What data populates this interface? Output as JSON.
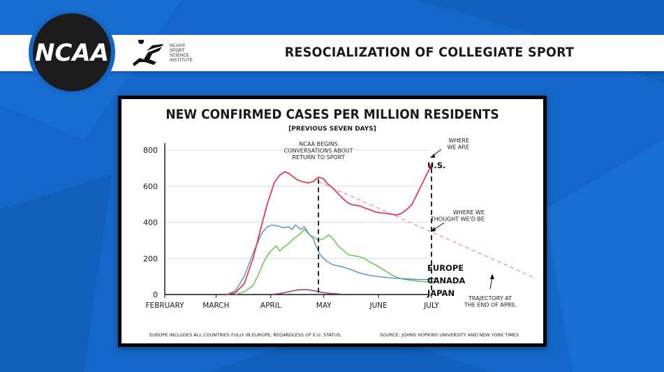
{
  "slide": {
    "title": "RESOCIALIZATION OF COLLEGIATE SPORT",
    "logo_text": "NCAA",
    "institute_lines": [
      "NCAA®",
      "SPORT",
      "SCIENCE",
      "INSTITUTE"
    ]
  },
  "colors": {
    "background": "#1467c8",
    "us": "#e23b4e",
    "europe": "#4d8fd6",
    "canada": "#5cc245",
    "japan": "#8b2a6e",
    "trajectory": "#f2a0ac"
  },
  "chart_data": {
    "type": "line",
    "title": "NEW CONFIRMED CASES PER MILLION RESIDENTS",
    "subtitle": "[PREVIOUS SEVEN DAYS]",
    "x_ticks": [
      "FEBRUARY",
      "MARCH",
      "APRIL",
      "MAY",
      "JUNE",
      "JULY"
    ],
    "y_ticks": [
      0,
      200,
      400,
      600,
      800
    ],
    "ylim": [
      0,
      800
    ],
    "x_unit": "days since Feb 1",
    "grid": true,
    "series": [
      {
        "name": "U.S.",
        "color": "#e23b4e",
        "x": [
          35,
          40,
          45,
          50,
          55,
          58,
          62,
          65,
          68,
          70,
          73,
          75,
          78,
          81,
          84,
          87,
          90,
          92,
          95,
          98,
          101,
          104,
          107,
          110,
          113,
          116,
          119,
          122,
          125,
          128,
          131,
          134,
          137,
          140,
          143,
          146,
          149,
          150,
          151
        ],
        "values": [
          0,
          10,
          60,
          200,
          390,
          500,
          620,
          660,
          680,
          672,
          650,
          635,
          625,
          618,
          625,
          650,
          640,
          615,
          590,
          560,
          530,
          505,
          495,
          492,
          480,
          470,
          458,
          452,
          450,
          445,
          440,
          450,
          470,
          500,
          560,
          620,
          680,
          695,
          715
        ]
      },
      {
        "name": "EUROPE",
        "color": "#4d8fd6",
        "x": [
          35,
          40,
          45,
          50,
          55,
          58,
          61,
          64,
          67,
          70,
          72,
          74,
          77,
          79,
          82,
          84,
          86,
          88,
          91,
          95,
          100,
          105,
          110,
          115,
          120,
          125,
          130,
          135,
          140,
          145,
          150,
          155
        ],
        "values": [
          0,
          20,
          100,
          230,
          340,
          375,
          385,
          380,
          370,
          375,
          360,
          385,
          360,
          375,
          330,
          310,
          260,
          220,
          190,
          165,
          155,
          140,
          120,
          108,
          100,
          95,
          90,
          88,
          85,
          82,
          85,
          90
        ]
      },
      {
        "name": "CANADA",
        "color": "#5cc245",
        "x": [
          40,
          45,
          50,
          53,
          56,
          59,
          61,
          63,
          65,
          67,
          70,
          73,
          76,
          79,
          82,
          84,
          87,
          90,
          93,
          96,
          98,
          101,
          104,
          107,
          110,
          113,
          116,
          120,
          125,
          130,
          135,
          140,
          145,
          150,
          155
        ],
        "values": [
          0,
          15,
          50,
          110,
          180,
          230,
          250,
          270,
          240,
          260,
          280,
          310,
          330,
          360,
          330,
          320,
          300,
          310,
          330,
          300,
          270,
          245,
          220,
          215,
          210,
          200,
          180,
          160,
          130,
          100,
          85,
          78,
          72,
          70,
          70
        ]
      },
      {
        "name": "JAPAN",
        "color": "#8b2a6e",
        "x": [
          60,
          65,
          70,
          75,
          80,
          85,
          90,
          95,
          100
        ],
        "values": [
          0,
          5,
          15,
          25,
          28,
          20,
          10,
          5,
          2
        ]
      }
    ],
    "projection": {
      "name": "TRAJECTORY AT THE END OF APRIL",
      "color": "#f2a0ac",
      "x": [
        87,
        210
      ],
      "values": [
        625,
        90
      ]
    },
    "event_line": {
      "x": 87
    },
    "now_line": {
      "x": 151
    },
    "annotations": {
      "ncaa": [
        "NCAA BEGINS",
        "CONVERSATIONS ABOUT",
        "RETURN TO SPORT"
      ],
      "where_we_are": [
        "WHERE",
        "WE ARE"
      ],
      "where_thought": [
        "WHERE WE",
        "THOUGHT WE'D BE"
      ],
      "trajectory": [
        "TRAJECTORY AT",
        "THE END OF APRIL"
      ]
    },
    "series_labels": [
      "U.S.",
      "EUROPE",
      "CANADA",
      "JAPAN"
    ],
    "footnote_left": "EUROPE INCLUDES ALL COUNTRIES FULLY IN EUROPE, REGARDLESS OF E.U. STATUS.",
    "footnote_right": "SOURCE: JOHNS HOPKINS UNIVERSITY AND NEW YORK TIMES"
  }
}
